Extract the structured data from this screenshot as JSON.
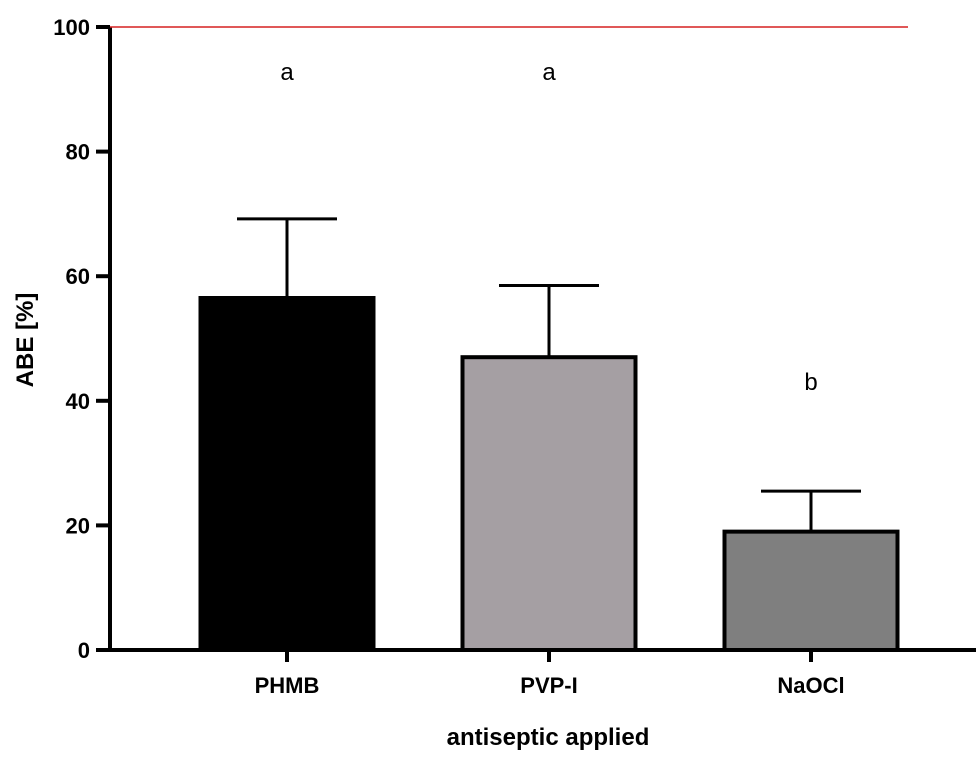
{
  "chart_data": {
    "type": "bar",
    "categories": [
      "PHMB",
      "PVP-I",
      "NaOCl"
    ],
    "values": [
      56.5,
      47.0,
      19.0
    ],
    "error_upper": [
      69.2,
      58.5,
      25.5
    ],
    "annotations": [
      "a",
      "a",
      "b"
    ],
    "bar_colors": [
      "#000000",
      "#a59fa3",
      "#7f7f7f"
    ],
    "reference_line": {
      "value": 100,
      "color": "#d62020"
    },
    "xlabel": "antiseptic applied",
    "ylabel": "ABE [%]",
    "ylim": [
      0,
      100
    ],
    "yticks": [
      0,
      20,
      40,
      60,
      80,
      100
    ],
    "grid": false,
    "legend": "none"
  }
}
